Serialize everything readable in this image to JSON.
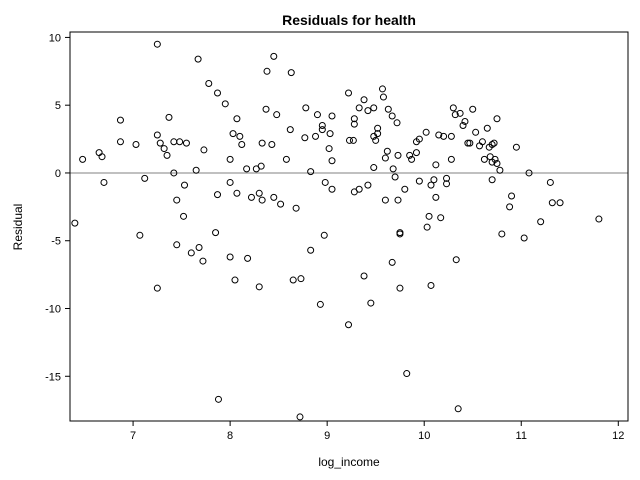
{
  "chart_data": {
    "type": "scatter",
    "title": "Residuals for health",
    "xlabel": "log_income",
    "ylabel": "Residual",
    "xlim": [
      6.35,
      12.1
    ],
    "ylim": [
      -18.3,
      10.4
    ],
    "xticks": [
      7,
      8,
      9,
      10,
      11,
      12
    ],
    "yticks": [
      10,
      5,
      0,
      -5,
      -10,
      -15
    ],
    "reference_line_y": 0,
    "grid": false,
    "colors": {
      "marker": "#000000",
      "reference_line": "#808080",
      "frame": "#000000"
    },
    "points": [
      [
        6.4,
        -3.7
      ],
      [
        6.48,
        1.0
      ],
      [
        6.65,
        1.5
      ],
      [
        6.68,
        1.2
      ],
      [
        6.7,
        -0.7
      ],
      [
        6.87,
        3.9
      ],
      [
        6.87,
        2.3
      ],
      [
        7.03,
        2.1
      ],
      [
        7.07,
        -4.6
      ],
      [
        7.12,
        -0.4
      ],
      [
        7.25,
        9.5
      ],
      [
        7.25,
        2.8
      ],
      [
        7.25,
        -8.5
      ],
      [
        7.28,
        2.2
      ],
      [
        7.32,
        1.8
      ],
      [
        7.35,
        1.3
      ],
      [
        7.37,
        4.1
      ],
      [
        7.42,
        2.3
      ],
      [
        7.42,
        0.0
      ],
      [
        7.45,
        -2.0
      ],
      [
        7.45,
        -5.3
      ],
      [
        7.48,
        2.3
      ],
      [
        7.52,
        -3.2
      ],
      [
        7.53,
        -0.9
      ],
      [
        7.55,
        2.2
      ],
      [
        7.6,
        -5.9
      ],
      [
        7.65,
        0.2
      ],
      [
        7.67,
        8.4
      ],
      [
        7.68,
        -5.5
      ],
      [
        7.72,
        -6.5
      ],
      [
        7.73,
        1.7
      ],
      [
        7.78,
        6.6
      ],
      [
        7.85,
        -4.4
      ],
      [
        7.87,
        5.9
      ],
      [
        7.87,
        -1.6
      ],
      [
        7.88,
        -16.7
      ],
      [
        7.95,
        5.1
      ],
      [
        8.0,
        1.0
      ],
      [
        8.0,
        -0.7
      ],
      [
        8.0,
        -6.2
      ],
      [
        8.03,
        2.9
      ],
      [
        8.05,
        -7.9
      ],
      [
        8.07,
        4.0
      ],
      [
        8.07,
        -1.5
      ],
      [
        8.1,
        2.7
      ],
      [
        8.12,
        2.1
      ],
      [
        8.17,
        0.3
      ],
      [
        8.18,
        -6.3
      ],
      [
        8.22,
        -1.8
      ],
      [
        8.27,
        0.3
      ],
      [
        8.3,
        -1.5
      ],
      [
        8.3,
        -8.4
      ],
      [
        8.32,
        0.5
      ],
      [
        8.33,
        2.2
      ],
      [
        8.33,
        -2.0
      ],
      [
        8.37,
        4.7
      ],
      [
        8.38,
        7.5
      ],
      [
        8.43,
        2.1
      ],
      [
        8.45,
        8.6
      ],
      [
        8.45,
        -1.8
      ],
      [
        8.48,
        4.3
      ],
      [
        8.52,
        -2.3
      ],
      [
        8.58,
        1.0
      ],
      [
        8.62,
        3.2
      ],
      [
        8.63,
        7.4
      ],
      [
        8.65,
        -7.9
      ],
      [
        8.68,
        -2.6
      ],
      [
        8.72,
        -18.0
      ],
      [
        8.73,
        -7.8
      ],
      [
        8.77,
        2.6
      ],
      [
        8.78,
        4.8
      ],
      [
        8.83,
        0.1
      ],
      [
        8.83,
        -5.7
      ],
      [
        8.88,
        2.7
      ],
      [
        8.9,
        4.3
      ],
      [
        8.93,
        -9.7
      ],
      [
        8.95,
        3.5
      ],
      [
        8.95,
        3.2
      ],
      [
        8.97,
        -4.6
      ],
      [
        8.98,
        -0.7
      ],
      [
        9.02,
        1.8
      ],
      [
        9.03,
        2.9
      ],
      [
        9.05,
        4.2
      ],
      [
        9.05,
        0.9
      ],
      [
        9.05,
        -1.2
      ],
      [
        9.22,
        5.9
      ],
      [
        9.22,
        -11.2
      ],
      [
        9.23,
        2.4
      ],
      [
        9.27,
        2.4
      ],
      [
        9.28,
        4.0
      ],
      [
        9.28,
        3.6
      ],
      [
        9.28,
        -1.4
      ],
      [
        9.33,
        4.8
      ],
      [
        9.33,
        -1.2
      ],
      [
        9.38,
        5.4
      ],
      [
        9.38,
        -7.6
      ],
      [
        9.42,
        4.6
      ],
      [
        9.42,
        -0.9
      ],
      [
        9.45,
        -9.6
      ],
      [
        9.48,
        4.8
      ],
      [
        9.48,
        2.7
      ],
      [
        9.48,
        0.4
      ],
      [
        9.5,
        2.4
      ],
      [
        9.52,
        3.3
      ],
      [
        9.52,
        2.9
      ],
      [
        9.57,
        6.2
      ],
      [
        9.58,
        5.6
      ],
      [
        9.6,
        1.1
      ],
      [
        9.6,
        -2.0
      ],
      [
        9.62,
        1.6
      ],
      [
        9.63,
        4.7
      ],
      [
        9.67,
        4.2
      ],
      [
        9.67,
        -6.6
      ],
      [
        9.68,
        0.3
      ],
      [
        9.7,
        -0.3
      ],
      [
        9.72,
        3.7
      ],
      [
        9.73,
        1.3
      ],
      [
        9.73,
        -2.0
      ],
      [
        9.75,
        -4.4
      ],
      [
        9.75,
        -4.5
      ],
      [
        9.75,
        -8.5
      ],
      [
        9.8,
        -1.2
      ],
      [
        9.82,
        -14.8
      ],
      [
        9.85,
        1.3
      ],
      [
        9.87,
        1.0
      ],
      [
        9.92,
        2.3
      ],
      [
        9.92,
        1.5
      ],
      [
        9.95,
        2.5
      ],
      [
        9.95,
        -0.6
      ],
      [
        10.02,
        3.0
      ],
      [
        10.03,
        -4.0
      ],
      [
        10.05,
        -3.2
      ],
      [
        10.07,
        -0.9
      ],
      [
        10.07,
        -8.3
      ],
      [
        10.1,
        -0.5
      ],
      [
        10.12,
        0.6
      ],
      [
        10.12,
        -1.8
      ],
      [
        10.15,
        2.8
      ],
      [
        10.17,
        -3.3
      ],
      [
        10.2,
        2.7
      ],
      [
        10.23,
        -0.4
      ],
      [
        10.23,
        -0.8
      ],
      [
        10.28,
        1.0
      ],
      [
        10.28,
        2.7
      ],
      [
        10.3,
        4.8
      ],
      [
        10.32,
        4.3
      ],
      [
        10.33,
        -6.4
      ],
      [
        10.35,
        -17.4
      ],
      [
        10.37,
        4.4
      ],
      [
        10.4,
        3.5
      ],
      [
        10.42,
        3.8
      ],
      [
        10.45,
        2.2
      ],
      [
        10.47,
        2.2
      ],
      [
        10.5,
        4.7
      ],
      [
        10.53,
        3.0
      ],
      [
        10.57,
        2.0
      ],
      [
        10.6,
        2.3
      ],
      [
        10.62,
        1.0
      ],
      [
        10.65,
        3.3
      ],
      [
        10.67,
        1.9
      ],
      [
        10.68,
        1.2
      ],
      [
        10.7,
        2.1
      ],
      [
        10.7,
        0.8
      ],
      [
        10.7,
        -0.5
      ],
      [
        10.72,
        2.2
      ],
      [
        10.73,
        1.0
      ],
      [
        10.75,
        0.7
      ],
      [
        10.75,
        4.0
      ],
      [
        10.78,
        0.2
      ],
      [
        10.8,
        -4.5
      ],
      [
        10.88,
        -2.5
      ],
      [
        10.9,
        -1.7
      ],
      [
        10.95,
        1.9
      ],
      [
        11.03,
        -4.8
      ],
      [
        11.08,
        0.0
      ],
      [
        11.2,
        -3.6
      ],
      [
        11.3,
        -0.7
      ],
      [
        11.32,
        -2.2
      ],
      [
        11.4,
        -2.2
      ],
      [
        11.8,
        -3.4
      ]
    ]
  }
}
